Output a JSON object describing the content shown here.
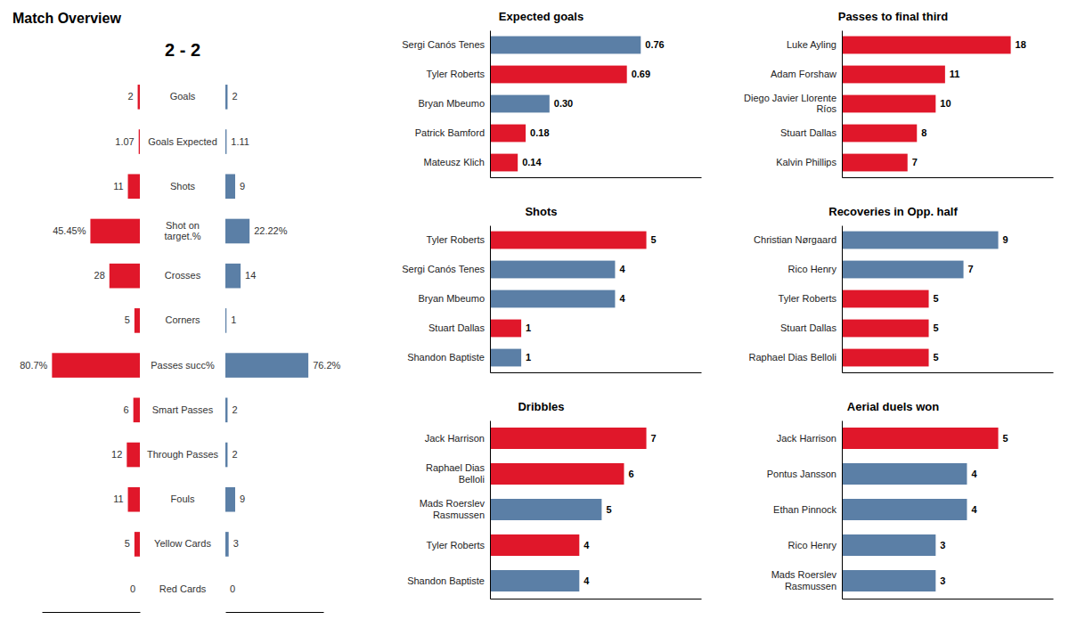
{
  "chart_data": [
    {
      "type": "bar",
      "orientation": "horizontal",
      "title": "Match Overview",
      "subtitle": "2 - 2",
      "categories": [
        "Goals",
        "Goals Expected",
        "Shots",
        "Shot on\ntarget.%",
        "Crosses",
        "Corners",
        "Passes succ%",
        "Smart Passes",
        "Through Passes",
        "Fouls",
        "Yellow Cards",
        "Red Cards"
      ],
      "series": [
        {
          "color": "#e0172a",
          "values": [
            2,
            1.07,
            11,
            45.45,
            28,
            5,
            80.7,
            6,
            12,
            11,
            5,
            0
          ],
          "value_labels": [
            "2",
            "1.07",
            "11",
            "45.45%",
            "28",
            "5",
            "80.7%",
            "6",
            "12",
            "11",
            "5",
            "0"
          ]
        },
        {
          "color": "#5b7fa6",
          "values": [
            2,
            1.11,
            9,
            22.22,
            14,
            1,
            76.2,
            2,
            2,
            9,
            3,
            0
          ],
          "value_labels": [
            "2",
            "1.11",
            "9",
            "22.22%",
            "14",
            "1",
            "76.2%",
            "2",
            "2",
            "9",
            "3",
            "0"
          ]
        }
      ],
      "xlim": [
        0,
        90
      ],
      "xticks": [],
      "tick_labels": false,
      "data_labels": true
    },
    {
      "type": "bar",
      "orientation": "horizontal",
      "title": "Expected goals",
      "categories": [
        "Sergi Canós Tenes",
        "Tyler Roberts",
        "Bryan Mbeumo",
        "Patrick Bamford",
        "Mateusz Klich"
      ],
      "values": [
        0.76,
        0.69,
        0.3,
        0.18,
        0.14
      ],
      "value_labels": [
        "0.76",
        "0.69",
        "0.30",
        "0.18",
        "0.14"
      ],
      "colors": [
        "#5b7fa6",
        "#e0172a",
        "#5b7fa6",
        "#e0172a",
        "#e0172a"
      ],
      "xlim": [
        0,
        1.064
      ],
      "xticks": [],
      "tick_labels": "y",
      "data_labels": true
    },
    {
      "type": "bar",
      "orientation": "horizontal",
      "title": "Shots",
      "categories": [
        "Tyler Roberts",
        "Sergi Canós Tenes",
        "Bryan Mbeumo",
        "Stuart Dallas",
        "Shandon Baptiste"
      ],
      "values": [
        5,
        4,
        4,
        1,
        1
      ],
      "colors": [
        "#e0172a",
        "#5b7fa6",
        "#5b7fa6",
        "#e0172a",
        "#5b7fa6"
      ],
      "xlim": [
        0,
        6.75
      ],
      "xticks": [],
      "tick_labels": "y",
      "data_labels": true
    },
    {
      "type": "bar",
      "orientation": "horizontal",
      "title": "Dribbles",
      "categories": [
        "Jack Harrison",
        "Raphael Dias\nBelloli",
        "Mads Roerslev\nRasmussen",
        "Tyler Roberts",
        "Shandon Baptiste"
      ],
      "values": [
        7,
        6,
        5,
        4,
        4
      ],
      "colors": [
        "#e0172a",
        "#e0172a",
        "#5b7fa6",
        "#e0172a",
        "#5b7fa6"
      ],
      "xlim": [
        0,
        9.45
      ],
      "xticks": [],
      "tick_labels": "y",
      "data_labels": true
    },
    {
      "type": "bar",
      "orientation": "horizontal",
      "title": "Passes to final third",
      "categories": [
        "Luke Ayling",
        "Adam Forshaw",
        "Diego Javier Llorente\nRíos",
        "Stuart Dallas",
        "Kalvin Phillips"
      ],
      "values": [
        18,
        11,
        10,
        8,
        7
      ],
      "colors": [
        "#e0172a",
        "#e0172a",
        "#e0172a",
        "#e0172a",
        "#e0172a"
      ],
      "xlim": [
        0,
        22.5
      ],
      "xticks": [],
      "tick_labels": "y",
      "data_labels": true
    },
    {
      "type": "bar",
      "orientation": "horizontal",
      "title": "Recoveries in Opp. half",
      "categories": [
        "Christian Nørgaard",
        "Rico Henry",
        "Tyler Roberts",
        "Stuart Dallas",
        "Raphael Dias Belloli"
      ],
      "values": [
        9,
        7,
        5,
        5,
        5
      ],
      "colors": [
        "#5b7fa6",
        "#5b7fa6",
        "#e0172a",
        "#e0172a",
        "#e0172a"
      ],
      "xlim": [
        0,
        12.15
      ],
      "xticks": [],
      "tick_labels": "y",
      "data_labels": true
    },
    {
      "type": "bar",
      "orientation": "horizontal",
      "title": "Aerial duels won",
      "categories": [
        "Jack Harrison",
        "Pontus Jansson",
        "Ethan Pinnock",
        "Rico Henry",
        "Mads Roerslev\nRasmussen"
      ],
      "values": [
        5,
        4,
        4,
        3,
        3
      ],
      "colors": [
        "#e0172a",
        "#5b7fa6",
        "#5b7fa6",
        "#5b7fa6",
        "#5b7fa6"
      ],
      "xlim": [
        0,
        6.75
      ],
      "xticks": [],
      "tick_labels": "y",
      "data_labels": true
    }
  ]
}
